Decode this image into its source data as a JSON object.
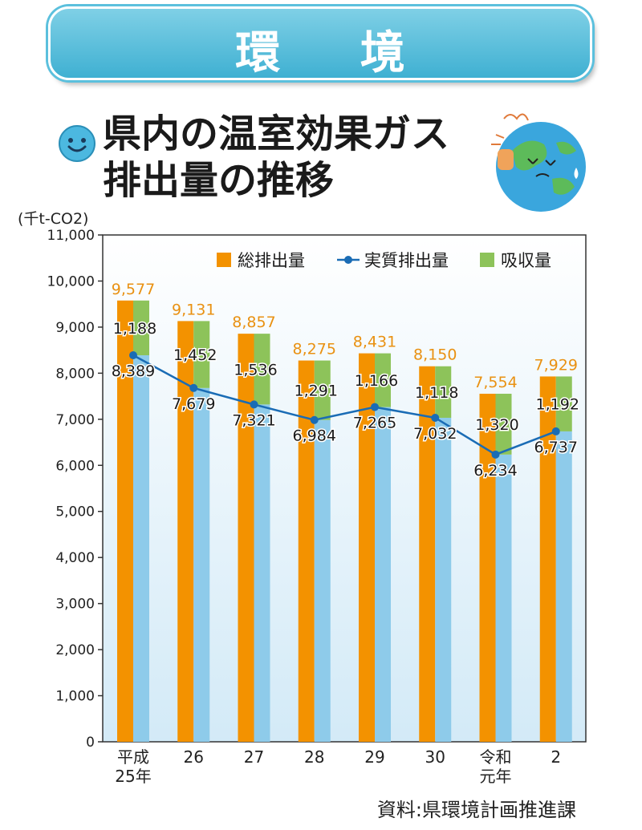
{
  "banner": {
    "title": "環 境"
  },
  "heading": {
    "line1": "県内の温室効果ガス",
    "line2": "排出量の推移"
  },
  "unit": "(千t-CO2)",
  "source": "資料:県環境計画推進課",
  "colors": {
    "total": "#f39200",
    "actual_bar": "#8ecbea",
    "absorption": "#8dc35a",
    "line": "#1a6cb5",
    "total_label": "#e99112",
    "banner": "#4ab8d8"
  },
  "chart_data": {
    "type": "bar",
    "categories": [
      "平成25年",
      "26",
      "27",
      "28",
      "29",
      "30",
      "令和元年",
      "2"
    ],
    "category_lines": [
      [
        "平成",
        "25年"
      ],
      [
        "26"
      ],
      [
        "27"
      ],
      [
        "28"
      ],
      [
        "29"
      ],
      [
        "30"
      ],
      [
        "令和",
        "元年"
      ],
      [
        "2"
      ]
    ],
    "series": [
      {
        "name": "総排出量",
        "type": "bar",
        "values": [
          9577,
          9131,
          8857,
          8275,
          8431,
          8150,
          7554,
          7929
        ]
      },
      {
        "name": "実質排出量",
        "type": "line",
        "values": [
          8389,
          7679,
          7321,
          6984,
          7265,
          7032,
          6234,
          6737
        ]
      },
      {
        "name": "吸収量",
        "type": "bar-stack",
        "values": [
          1188,
          1452,
          1536,
          1291,
          1166,
          1118,
          1320,
          1192
        ]
      }
    ],
    "ylim": [
      0,
      11000
    ],
    "yticks": [
      0,
      1000,
      2000,
      3000,
      4000,
      5000,
      6000,
      7000,
      8000,
      9000,
      10000,
      11000
    ],
    "ylabel": "(千t-CO2)",
    "xlabel": "",
    "grid": false,
    "legend": "top-right"
  }
}
